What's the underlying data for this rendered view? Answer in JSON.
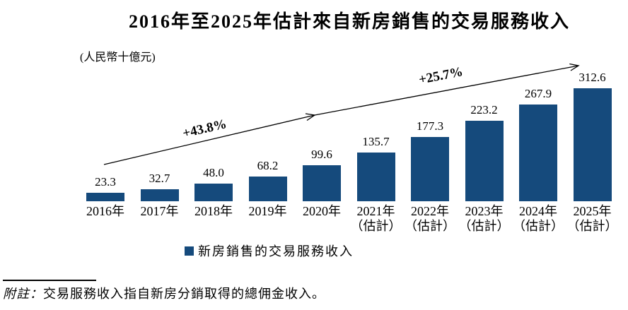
{
  "page": {
    "title": "2016年至2025年估計來自新房銷售的交易服務收入",
    "unit_label": "(人民幣十億元)",
    "legend": {
      "label": "新房銷售的交易服務收入",
      "swatch_color": "#154A7C"
    },
    "footnote": {
      "label": "附註：",
      "text": "交易服務收入指自新房分銷取得的總佣金收入。"
    }
  },
  "chart_data": {
    "type": "bar",
    "title": "2016年至2025年估計來自新房銷售的交易服務收入",
    "unit": "人民幣十億元",
    "categories": [
      "2016年",
      "2017年",
      "2018年",
      "2019年",
      "2020年",
      "2021年",
      "2022年",
      "2023年",
      "2024年",
      "2025年"
    ],
    "estimate_suffix": "（估計）",
    "estimated_from_index": 5,
    "values": [
      23.3,
      32.7,
      48.0,
      68.2,
      99.6,
      135.7,
      177.3,
      223.2,
      267.9,
      312.6
    ],
    "value_labels": [
      "23.3",
      "32.7",
      "48.0",
      "68.2",
      "99.6",
      "135.7",
      "177.3",
      "223.2",
      "267.9",
      "312.6"
    ],
    "bar_color": "#154A7C",
    "ylim": [
      0,
      330
    ],
    "grid": false,
    "legend_position": "bottom",
    "annotations": [
      {
        "type": "growth-arrow",
        "text": "+43.8%"
      },
      {
        "type": "growth-arrow",
        "text": "+25.7%"
      }
    ]
  }
}
